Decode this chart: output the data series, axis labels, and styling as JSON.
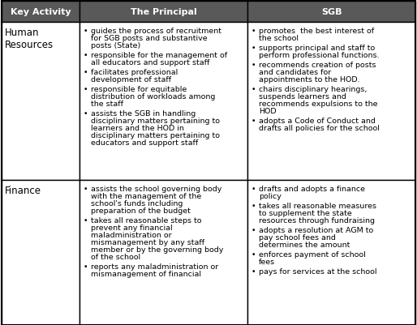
{
  "header_bg": "#595959",
  "header_text_color": "#ffffff",
  "cell_bg": "#ffffff",
  "border_color": "#000000",
  "text_color": "#000000",
  "headers": [
    "Key Activity",
    "The Principal",
    "SGB"
  ],
  "figsize": [
    5.14,
    4.02
  ],
  "dpi": 100,
  "rows": [
    {
      "key_activity": "Human\nResources",
      "principal": [
        "guides the process of recruitment\nfor SGB posts and substantive\nposts (State)",
        "responsible for the management of\nall educators and support staff",
        "facilitates professional\ndevelopment of staff",
        "responsible for equitable\ndistribution of workloads among\nthe staff",
        "assists the SGB in handling\ndisciplinary matters pertaining to\nlearners and the HOD in\ndisciplinary matters pertaining to\neducators and support staff"
      ],
      "sgb": [
        "promotes  the best interest of\nthe school",
        "supports principal and staff to\nperform professional functions.",
        "recommends creation of posts\nand candidates for\nappointments to the HOD.",
        "chairs disciplinary hearings,\nsuspends learners and\nrecommends expulsions to the\nHOD",
        "adopts a Code of Conduct and\ndrafts all policies for the school"
      ]
    },
    {
      "key_activity": "Finance",
      "principal": [
        "assists the school governing body\nwith the management of the\nschool's funds including\npreparation of the budget",
        "takes all reasonable steps to\nprevent any financial\nmaladministration or\nmismanagement by any staff\nmember or by the governing body\nof the school",
        "reports any maladministration or\nmismanagement of financial"
      ],
      "sgb": [
        "drafts and adopts a finance\npolicy",
        "takes all reasonable measures\nto supplement the state\nresources through fundraising",
        "adopts a resolution at AGM to\npay school fees and\ndetermines the amount",
        "enforces payment of school\nfees",
        "pays for services at the school"
      ]
    }
  ]
}
